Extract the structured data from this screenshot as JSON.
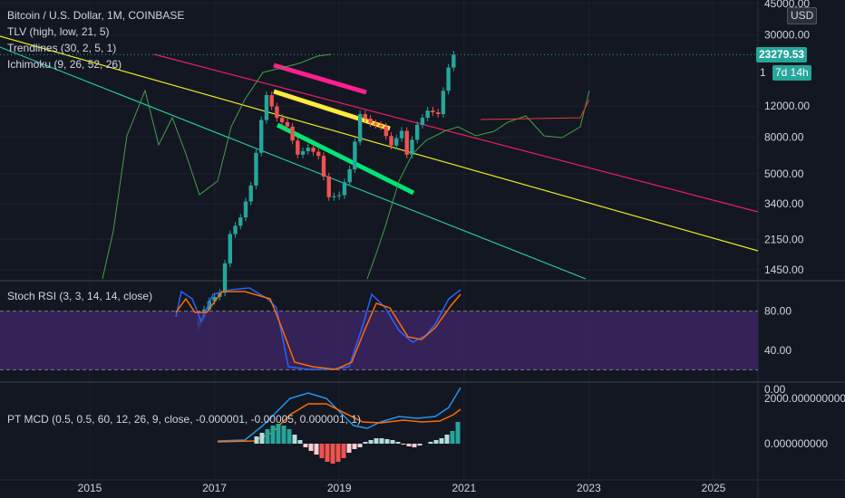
{
  "header": {
    "title": "Bitcoin / U.S. Dollar, 1M, COINBASE",
    "indicators": [
      "TLV (high, low, 21, 5)",
      "Trendlines (30, 2, 5, 1)",
      "Ichimoku (9, 26, 52, 26)"
    ],
    "currency": "USD"
  },
  "badges": {
    "last_price": "23279.53",
    "timer": "7d 14h",
    "timer_prefix": "1"
  },
  "panes": {
    "stoch_title": "Stoch RSI (3, 3, 14, 14, close)",
    "macd_title": "PT MCD (0.5, 0.5, 60, 12, 26, 9, close, -0.000001, -0.00005, 0.000001, 1)"
  },
  "colors": {
    "background": "#131722",
    "up": "#26a69a",
    "down": "#ef5350",
    "trend_pink": "#ff1f8e",
    "trend_yellow": "#ffeb3b",
    "trend_green": "#4caf50",
    "stoch_band": "#3b2561",
    "accent_badge": "#26a69a"
  },
  "chart_data": [
    {
      "type": "line",
      "title": "Bitcoin / U.S. Dollar, 1M, COINBASE",
      "scale": "log",
      "x_ticks": [
        "2015",
        "2017",
        "2019",
        "2021",
        "2023",
        "2025"
      ],
      "y_ticks": [
        "45000.00",
        "30000.00",
        "12000.00",
        "8000.00",
        "5000.00",
        "3400.00",
        "2150.00",
        "1450.00"
      ],
      "last_price": 23279.53,
      "series": [
        {
          "x": [
            "2016-10",
            "2017-01",
            "2017-03",
            "2017-05",
            "2017-07",
            "2017-09",
            "2017-11",
            "2017-12",
            "2018-02",
            "2018-04",
            "2018-06",
            "2018-08",
            "2018-10",
            "2018-12",
            "2019-02",
            "2019-04",
            "2019-06",
            "2019-08",
            "2019-10",
            "2019-12",
            "2020-02",
            "2020-03",
            "2020-05",
            "2020-07",
            "2020-09",
            "2020-11",
            "2020-12"
          ],
          "y": [
            700,
            970,
            1080,
            2300,
            2850,
            4300,
            10000,
            13800,
            10300,
            9200,
            6400,
            7000,
            6300,
            3700,
            3800,
            5300,
            10800,
            9600,
            9200,
            7200,
            8700,
            6400,
            9400,
            11300,
            10800,
            19700,
            23279
          ]
        }
      ]
    },
    {
      "type": "line",
      "title": "Stoch RSI (3, 3, 14, 14, close)",
      "y_ticks": [
        "80.00",
        "40.00",
        "0.00"
      ],
      "ylim": [
        0,
        100
      ]
    },
    {
      "type": "bar",
      "title": "PT MCD (0.5, 0.5, 60, 12, 26, 9, close, -0.000001, -0.00005, 0.000001, 1)",
      "y_ticks": [
        "2000.000000000",
        "0.000000000"
      ]
    }
  ]
}
